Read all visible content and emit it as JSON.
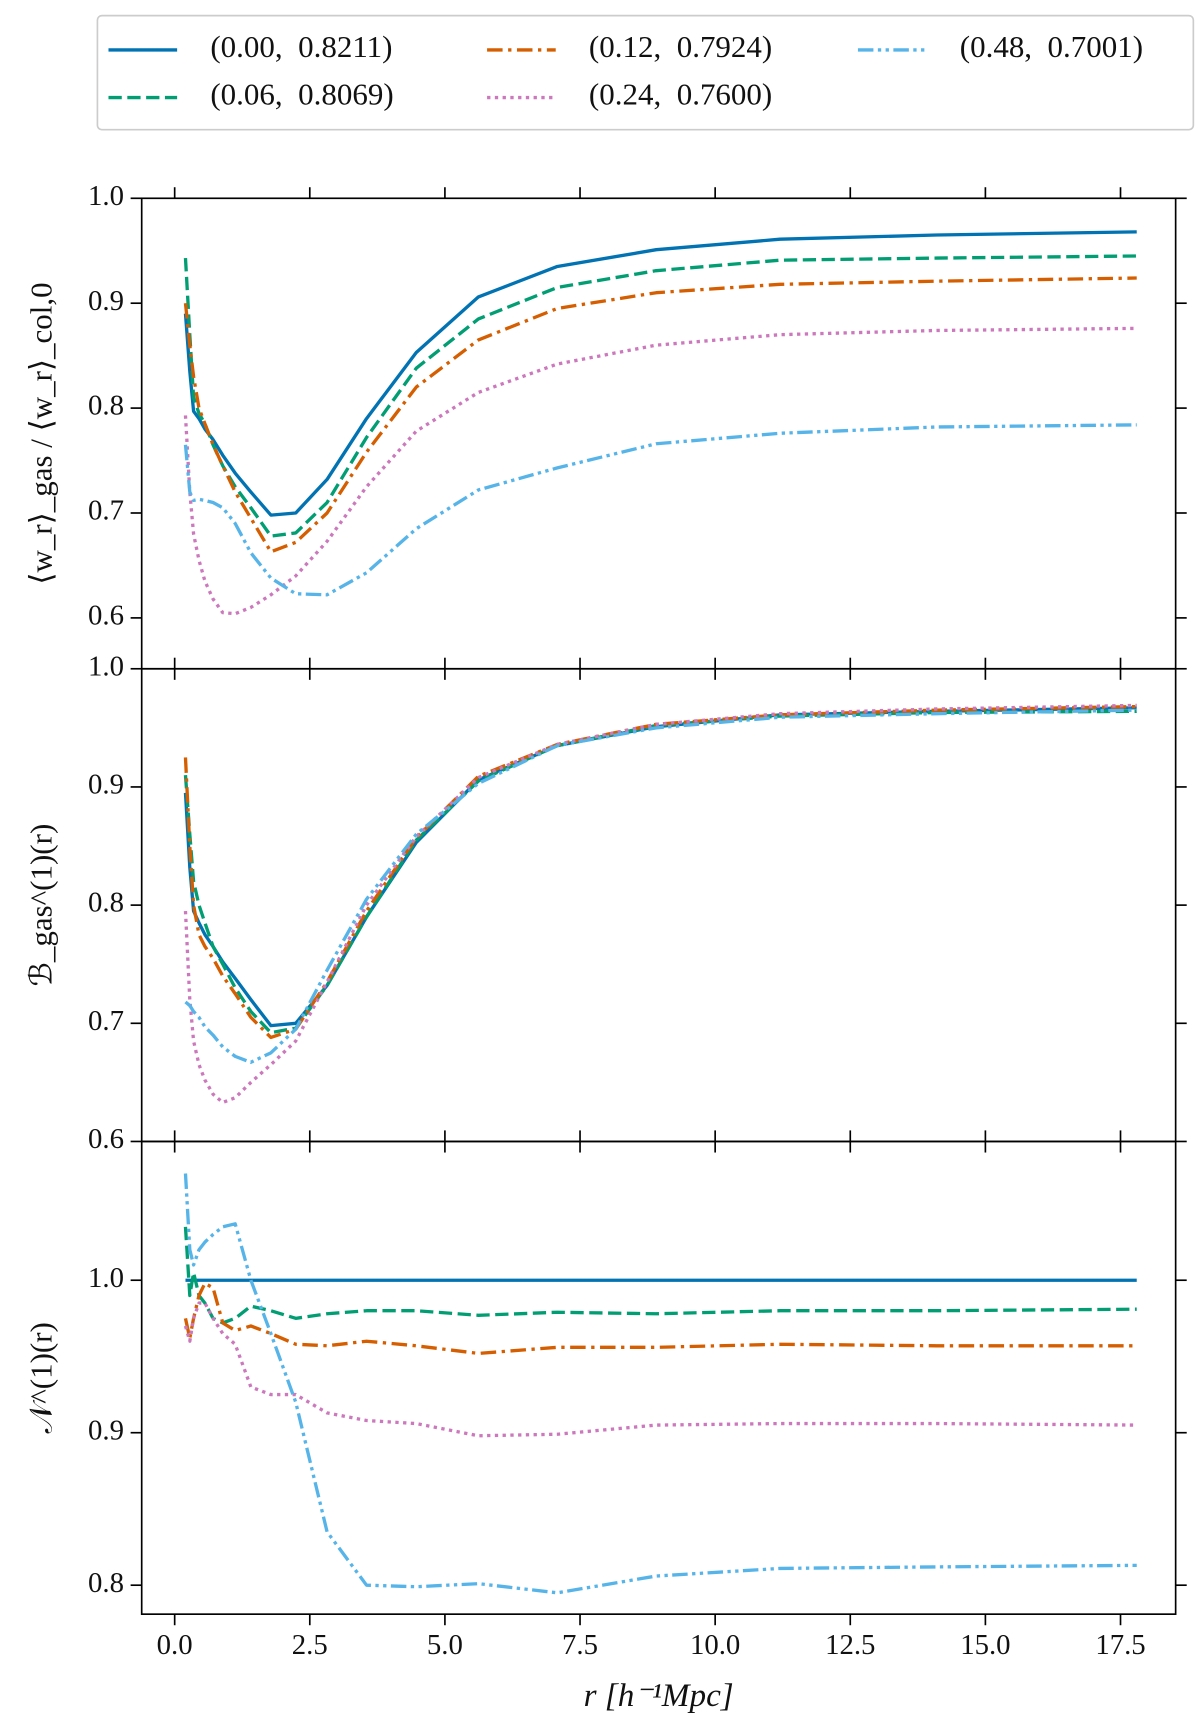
{
  "chart_data": [
    {
      "type": "line",
      "ylabel": "⟨w_r⟩_gas / ⟨w_r⟩_col,0",
      "legend": "upper center",
      "x": [
        0.2,
        0.28,
        0.35,
        0.45,
        0.56,
        0.71,
        0.89,
        1.12,
        1.41,
        1.78,
        2.24,
        2.82,
        3.55,
        4.47,
        5.62,
        7.08,
        8.91,
        11.2,
        14.1,
        17.8
      ],
      "xlim": [
        -0.61,
        18.52
      ],
      "xticks": [
        {
          "value": 0,
          "label": "0.0"
        },
        2.5,
        {
          "value": 5,
          "label": "5.0"
        },
        7.5,
        {
          "value": 10,
          "label": "10.0"
        },
        12.5,
        {
          "value": 15,
          "label": "15.0"
        },
        17.5
      ],
      "ylim": [
        0.5515,
        1.0
      ],
      "yticks": [
        0.6,
        0.7,
        0.8,
        0.9,
        {
          "value": 1,
          "label": "1.0"
        }
      ],
      "series": [
        {
          "name": "(0.00,  0.8211)",
          "color": "#0173b2",
          "linestyle": "solid",
          "values": [
            0.89,
            0.835,
            0.797,
            0.79,
            0.78,
            0.77,
            0.755,
            0.738,
            0.72,
            0.698,
            0.7,
            0.732,
            0.79,
            0.853,
            0.906,
            0.935,
            0.951,
            0.961,
            0.965,
            0.968
          ]
        },
        {
          "name": "(0.06,  0.8069)",
          "color": "#029e73",
          "linestyle": "dashed",
          "values": [
            0.943,
            0.87,
            0.81,
            0.795,
            0.785,
            0.765,
            0.745,
            0.725,
            0.705,
            0.678,
            0.681,
            0.71,
            0.772,
            0.838,
            0.885,
            0.915,
            0.931,
            0.941,
            0.943,
            0.945
          ]
        },
        {
          "name": "(0.12,  0.7924)",
          "color": "#d55e00",
          "linestyle": "dashdot",
          "values": [
            0.9,
            0.86,
            0.83,
            0.8,
            0.785,
            0.765,
            0.745,
            0.72,
            0.695,
            0.663,
            0.672,
            0.7,
            0.758,
            0.82,
            0.865,
            0.895,
            0.91,
            0.918,
            0.921,
            0.924
          ]
        },
        {
          "name": "(0.24,  0.7600)",
          "color": "#cc78bc",
          "linestyle": "dotted",
          "values": [
            0.793,
            0.72,
            0.68,
            0.655,
            0.635,
            0.618,
            0.605,
            0.604,
            0.61,
            0.622,
            0.64,
            0.673,
            0.725,
            0.778,
            0.815,
            0.842,
            0.86,
            0.87,
            0.874,
            0.876
          ]
        },
        {
          "name": "(0.48,  0.7001)",
          "color": "#56b4e9",
          "linestyle": "dashdotdot",
          "values": [
            0.765,
            0.72,
            0.712,
            0.713,
            0.712,
            0.71,
            0.705,
            0.69,
            0.662,
            0.638,
            0.623,
            0.622,
            0.643,
            0.685,
            0.722,
            0.743,
            0.766,
            0.776,
            0.782,
            0.784
          ]
        }
      ]
    },
    {
      "type": "line",
      "ylabel": "ℬ_gas^(1)(r)",
      "x": [
        0.2,
        0.28,
        0.35,
        0.45,
        0.56,
        0.71,
        0.89,
        1.12,
        1.41,
        1.78,
        2.24,
        2.82,
        3.55,
        4.47,
        5.62,
        7.08,
        8.91,
        11.2,
        14.1,
        17.8
      ],
      "xlim": [
        -0.61,
        18.52
      ],
      "xticks": [
        0,
        2.5,
        5,
        7.5,
        10,
        12.5,
        15,
        17.5
      ],
      "ylim": [
        0.6,
        1.0
      ],
      "yticks": [
        0.6,
        0.7,
        0.8,
        0.9,
        {
          "value": 1,
          "label": "1.0"
        }
      ],
      "series": [
        {
          "color": "#0173b2",
          "linestyle": "solid",
          "values": [
            0.895,
            0.832,
            0.795,
            0.785,
            0.775,
            0.765,
            0.752,
            0.738,
            0.72,
            0.698,
            0.7,
            0.732,
            0.79,
            0.853,
            0.906,
            0.935,
            0.951,
            0.961,
            0.964,
            0.967
          ]
        },
        {
          "color": "#029e73",
          "linestyle": "dashed",
          "values": [
            0.91,
            0.86,
            0.82,
            0.8,
            0.785,
            0.765,
            0.75,
            0.73,
            0.71,
            0.692,
            0.696,
            0.732,
            0.79,
            0.855,
            0.905,
            0.935,
            0.952,
            0.96,
            0.963,
            0.964
          ]
        },
        {
          "color": "#d55e00",
          "linestyle": "dashdot",
          "values": [
            0.925,
            0.85,
            0.8,
            0.775,
            0.765,
            0.755,
            0.74,
            0.725,
            0.705,
            0.688,
            0.695,
            0.735,
            0.795,
            0.857,
            0.909,
            0.936,
            0.953,
            0.961,
            0.965,
            0.968
          ]
        },
        {
          "color": "#cc78bc",
          "linestyle": "dotted",
          "values": [
            0.795,
            0.72,
            0.685,
            0.665,
            0.652,
            0.64,
            0.633,
            0.637,
            0.65,
            0.665,
            0.685,
            0.735,
            0.8,
            0.858,
            0.908,
            0.936,
            0.953,
            0.962,
            0.966,
            0.969
          ]
        },
        {
          "color": "#56b4e9",
          "linestyle": "dashdotdot",
          "values": [
            0.718,
            0.715,
            0.71,
            0.705,
            0.697,
            0.69,
            0.68,
            0.672,
            0.667,
            0.675,
            0.695,
            0.745,
            0.805,
            0.86,
            0.903,
            0.935,
            0.95,
            0.959,
            0.962,
            0.965
          ]
        }
      ]
    },
    {
      "type": "line",
      "ylabel": "𝒩^(1)(r)",
      "xlabel": "r  [h⁻¹Mpc]",
      "x": [
        0.2,
        0.28,
        0.35,
        0.45,
        0.56,
        0.71,
        0.89,
        1.12,
        1.41,
        1.78,
        2.24,
        2.82,
        3.55,
        4.47,
        5.62,
        7.08,
        8.91,
        11.2,
        14.1,
        17.8
      ],
      "xlim": [
        -0.61,
        18.52
      ],
      "xticks": [
        {
          "value": 0,
          "label": "0.0"
        },
        2.5,
        {
          "value": 5,
          "label": "5.0"
        },
        7.5,
        {
          "value": 10,
          "label": "10.0"
        },
        12.5,
        {
          "value": 15,
          "label": "15.0"
        },
        17.5
      ],
      "ylim": [
        0.781,
        1.091
      ],
      "yticks": [
        0.8,
        0.9,
        {
          "value": 1,
          "label": "1.0"
        }
      ],
      "series": [
        {
          "color": "#0173b2",
          "linestyle": "solid",
          "values": [
            1,
            1,
            1,
            1,
            1,
            1,
            1,
            1,
            1,
            1,
            1,
            1,
            1,
            1,
            1,
            1,
            1,
            1,
            1,
            1
          ]
        },
        {
          "color": "#029e73",
          "linestyle": "dashed",
          "values": [
            1.035,
            0.99,
            1.005,
            0.99,
            0.985,
            0.975,
            0.972,
            0.975,
            0.983,
            0.98,
            0.975,
            0.978,
            0.98,
            0.98,
            0.977,
            0.979,
            0.978,
            0.98,
            0.98,
            0.981
          ]
        },
        {
          "color": "#d55e00",
          "linestyle": "dashdot",
          "values": [
            0.975,
            0.962,
            0.975,
            0.99,
            0.998,
            0.995,
            0.972,
            0.967,
            0.97,
            0.965,
            0.958,
            0.957,
            0.96,
            0.957,
            0.952,
            0.956,
            0.956,
            0.958,
            0.957,
            0.957
          ]
        },
        {
          "color": "#cc78bc",
          "linestyle": "dotted",
          "values": [
            0.97,
            0.96,
            0.975,
            0.985,
            0.985,
            0.975,
            0.965,
            0.958,
            0.93,
            0.925,
            0.925,
            0.913,
            0.908,
            0.906,
            0.898,
            0.899,
            0.905,
            0.906,
            0.906,
            0.905
          ]
        },
        {
          "color": "#56b4e9",
          "linestyle": "dashdotdot",
          "values": [
            1.07,
            1.02,
            1.01,
            1.02,
            1.025,
            1.03,
            1.035,
            1.037,
            1.0,
            0.965,
            0.92,
            0.835,
            0.8,
            0.799,
            0.801,
            0.795,
            0.806,
            0.811,
            0.812,
            0.813
          ]
        }
      ]
    }
  ]
}
